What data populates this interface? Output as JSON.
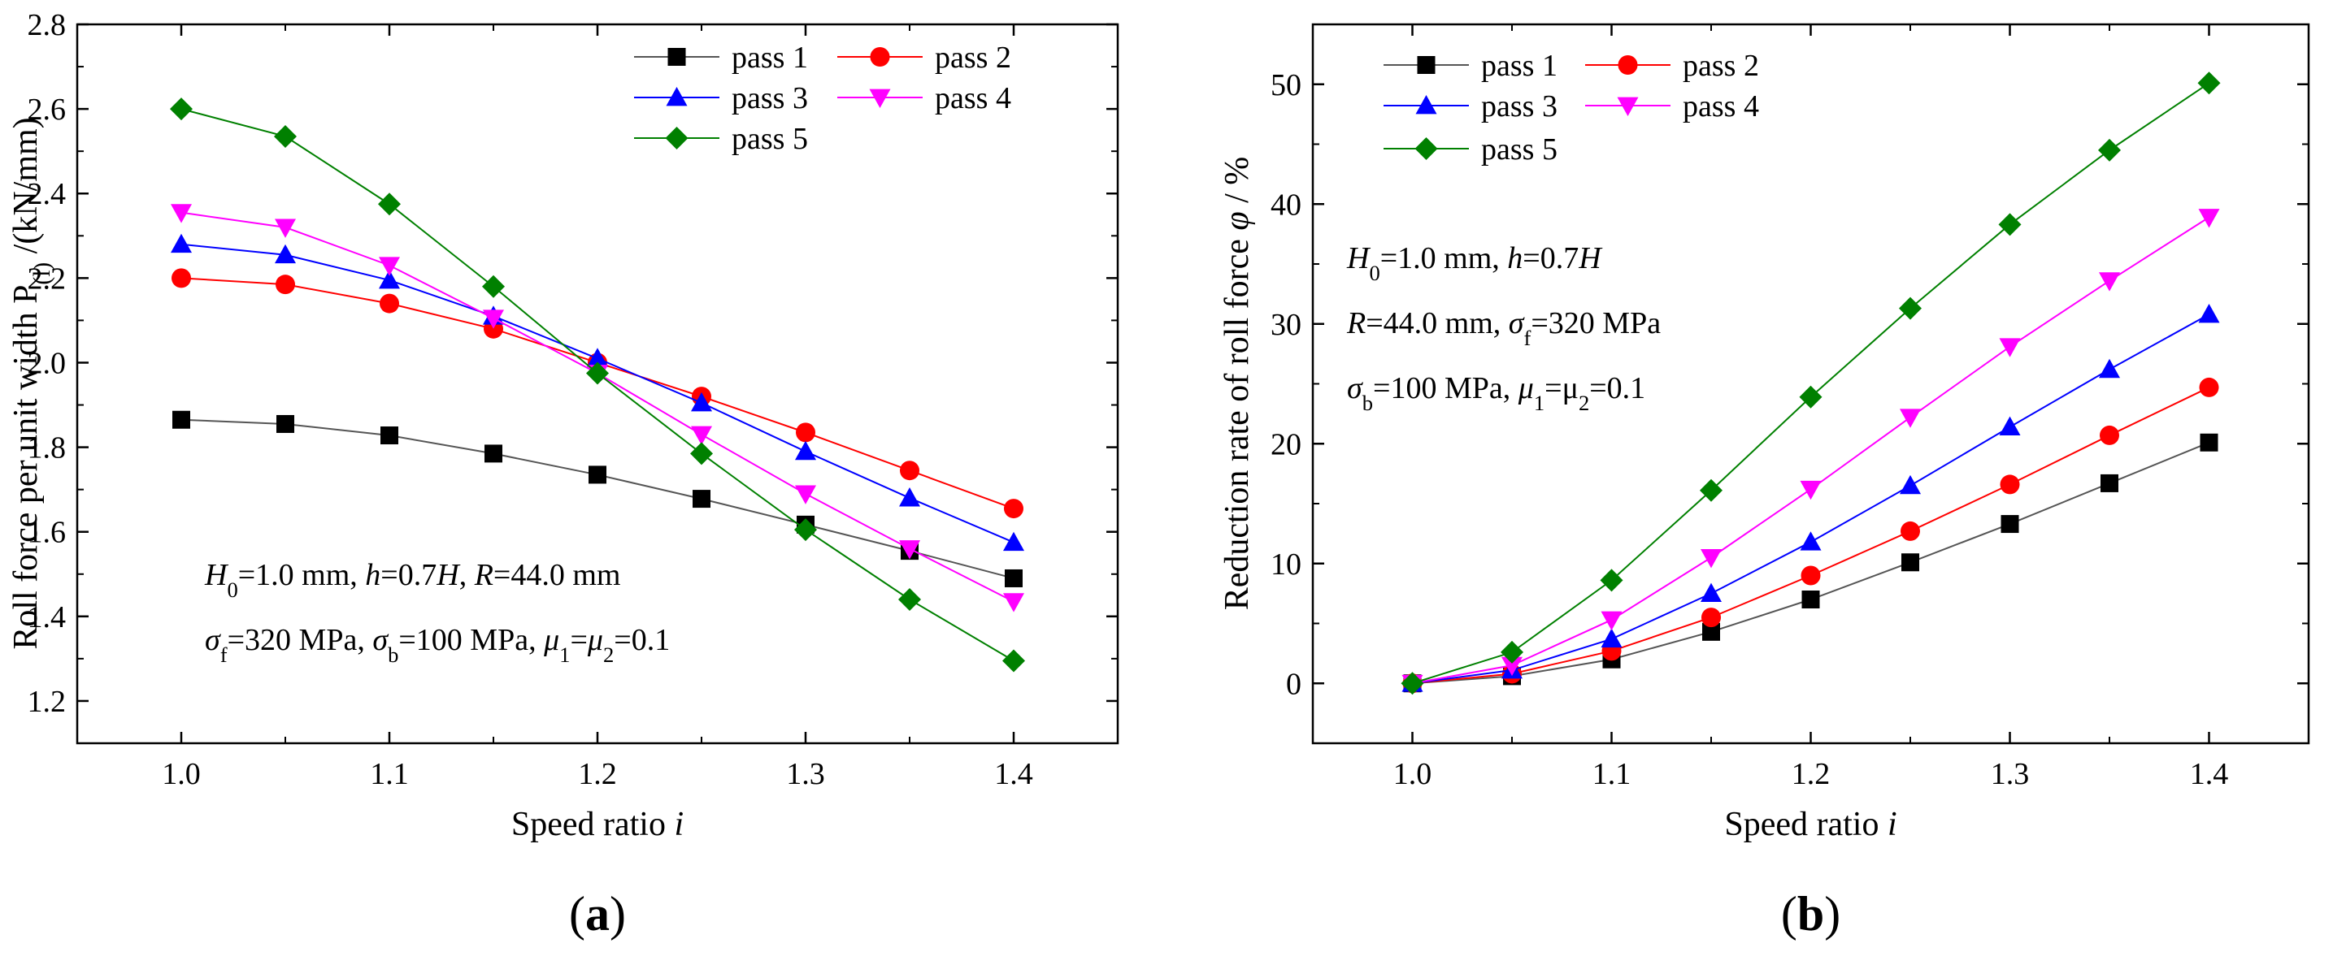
{
  "panels": [
    {
      "panel_label": "a",
      "annotation_lines": [
        [
          {
            "t": "H",
            "i": true
          },
          {
            "t": "0",
            "sub": true
          },
          {
            "t": "=1.0 mm, "
          },
          {
            "t": "h",
            "i": true
          },
          {
            "t": "=0.7"
          },
          {
            "t": "H",
            "i": true
          },
          {
            "t": ", "
          },
          {
            "t": "R",
            "i": true
          },
          {
            "t": "=44.0 mm"
          }
        ],
        [
          {
            "t": "σ",
            "i": true
          },
          {
            "t": "f",
            "sub": true
          },
          {
            "t": "=320 MPa, "
          },
          {
            "t": "σ",
            "i": true
          },
          {
            "t": "b",
            "sub": true
          },
          {
            "t": "=100 MPa, "
          },
          {
            "t": "μ",
            "i": true
          },
          {
            "t": "1",
            "sub": true
          },
          {
            "t": "="
          },
          {
            "t": "μ",
            "i": true
          },
          {
            "t": "2",
            "sub": true
          },
          {
            "t": "=0.1"
          }
        ]
      ],
      "ylabel_parts": [
        {
          "t": "Roll force per unit width P"
        },
        {
          "t": "(l)",
          "sub": true
        },
        {
          "t": " /(kN/mm)"
        }
      ]
    },
    {
      "panel_label": "b",
      "annotation_lines": [
        [
          {
            "t": "H",
            "i": true
          },
          {
            "t": "0",
            "sub": true
          },
          {
            "t": "=1.0 mm, "
          },
          {
            "t": "h",
            "i": true
          },
          {
            "t": "=0.7"
          },
          {
            "t": "H",
            "i": true
          }
        ],
        [
          {
            "t": "R",
            "i": true
          },
          {
            "t": "=44.0 mm, "
          },
          {
            "t": "σ",
            "i": true
          },
          {
            "t": "f",
            "sub": true
          },
          {
            "t": "=320 MPa"
          }
        ],
        [
          {
            "t": "σ",
            "i": true
          },
          {
            "t": "b",
            "sub": true
          },
          {
            "t": "=100 MPa, "
          },
          {
            "t": "μ",
            "i": true
          },
          {
            "t": "1",
            "sub": true
          },
          {
            "t": "=μ"
          },
          {
            "t": "2",
            "sub": true
          },
          {
            "t": "=0.1"
          }
        ]
      ],
      "ylabel_parts": [
        {
          "t": "Reduction rate of roll force "
        },
        {
          "t": "φ",
          "i": true
        },
        {
          "t": " / %"
        }
      ]
    }
  ],
  "chart_data": [
    {
      "type": "line",
      "xlabel_parts": [
        {
          "t": "Speed ratio "
        },
        {
          "t": "i",
          "i": true
        }
      ],
      "xlim": [
        0.95,
        1.45
      ],
      "ylim": [
        1.1,
        2.8
      ],
      "xticks": [
        1.0,
        1.1,
        1.2,
        1.3,
        1.4
      ],
      "xtick_labels": [
        "1.0",
        "1.1",
        "1.2",
        "1.3",
        "1.4"
      ],
      "yticks": [
        1.2,
        1.4,
        1.6,
        1.8,
        2.0,
        2.2,
        2.4,
        2.6,
        2.8
      ],
      "ytick_labels": [
        "1.2",
        "1.4",
        "1.6",
        "1.8",
        "2.0",
        "2.2",
        "2.4",
        "2.6",
        "2.8"
      ],
      "legend": "top-right",
      "grid": false,
      "x": [
        1.0,
        1.05,
        1.1,
        1.15,
        1.2,
        1.25,
        1.3,
        1.35,
        1.4
      ],
      "series": [
        {
          "name": "pass 1",
          "color": "#000000",
          "line_color": "#555555",
          "marker": "square",
          "values": [
            1.865,
            1.855,
            1.828,
            1.785,
            1.735,
            1.678,
            1.617,
            1.555,
            1.49
          ]
        },
        {
          "name": "pass 2",
          "color": "#ff0000",
          "line_color": "#ff0000",
          "marker": "circle",
          "values": [
            2.2,
            2.185,
            2.14,
            2.08,
            2.0,
            1.92,
            1.835,
            1.745,
            1.655
          ]
        },
        {
          "name": "pass 3",
          "color": "#0000ff",
          "line_color": "#0000ff",
          "marker": "triangle-up",
          "values": [
            2.28,
            2.255,
            2.195,
            2.11,
            2.01,
            1.905,
            1.79,
            1.68,
            1.575
          ]
        },
        {
          "name": "pass 4",
          "color": "#ff00ff",
          "line_color": "#ff00ff",
          "marker": "triangle-down",
          "values": [
            2.355,
            2.32,
            2.23,
            2.105,
            1.975,
            1.83,
            1.69,
            1.56,
            1.435
          ]
        },
        {
          "name": "pass 5",
          "color": "#008000",
          "line_color": "#008000",
          "marker": "diamond",
          "values": [
            2.6,
            2.535,
            2.375,
            2.18,
            1.975,
            1.785,
            1.605,
            1.44,
            1.295
          ]
        }
      ]
    },
    {
      "type": "line",
      "xlabel_parts": [
        {
          "t": "Speed ratio "
        },
        {
          "t": "i",
          "i": true
        }
      ],
      "xlim": [
        0.95,
        1.45
      ],
      "ylim": [
        -5,
        55
      ],
      "xticks": [
        1.0,
        1.1,
        1.2,
        1.3,
        1.4
      ],
      "xtick_labels": [
        "1.0",
        "1.1",
        "1.2",
        "1.3",
        "1.4"
      ],
      "yticks": [
        0,
        10,
        20,
        30,
        40,
        50
      ],
      "ytick_labels": [
        "0",
        "10",
        "20",
        "30",
        "40",
        "50"
      ],
      "legend": "top-left",
      "grid": false,
      "x": [
        1.0,
        1.05,
        1.1,
        1.15,
        1.2,
        1.25,
        1.3,
        1.35,
        1.4
      ],
      "series": [
        {
          "name": "pass 1",
          "color": "#000000",
          "line_color": "#555555",
          "marker": "square",
          "values": [
            0,
            0.6,
            2.0,
            4.3,
            7.0,
            10.1,
            13.3,
            16.7,
            20.1
          ]
        },
        {
          "name": "pass 2",
          "color": "#ff0000",
          "line_color": "#ff0000",
          "marker": "circle",
          "values": [
            0,
            0.8,
            2.7,
            5.5,
            9.0,
            12.7,
            16.6,
            20.7,
            24.7
          ]
        },
        {
          "name": "pass 3",
          "color": "#0000ff",
          "line_color": "#0000ff",
          "marker": "triangle-up",
          "values": [
            0,
            1.1,
            3.7,
            7.5,
            11.8,
            16.5,
            21.4,
            26.2,
            30.8
          ]
        },
        {
          "name": "pass 4",
          "color": "#ff00ff",
          "line_color": "#ff00ff",
          "marker": "triangle-down",
          "values": [
            0,
            1.5,
            5.3,
            10.5,
            16.2,
            22.2,
            28.1,
            33.6,
            38.9
          ]
        },
        {
          "name": "pass 5",
          "color": "#008000",
          "line_color": "#008000",
          "marker": "diamond",
          "values": [
            0,
            2.6,
            8.6,
            16.1,
            23.9,
            31.3,
            38.3,
            44.5,
            50.1
          ]
        }
      ]
    }
  ]
}
